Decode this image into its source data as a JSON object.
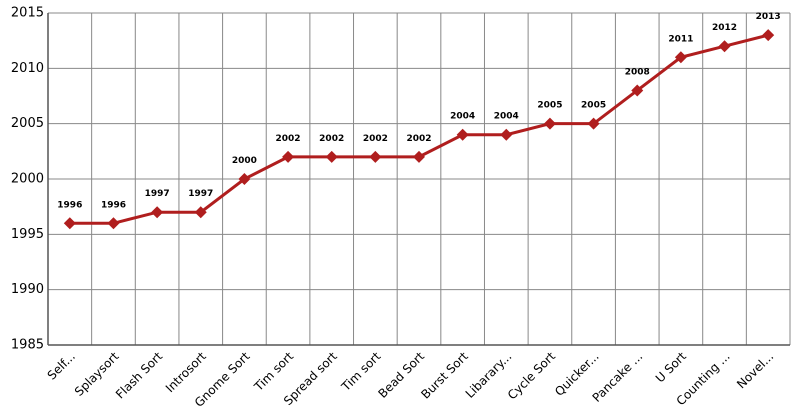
{
  "chart_data": {
    "type": "line",
    "categories": [
      "Self...",
      "Splaysort",
      "Flash Sort",
      "Introsort",
      "Gnome Sort",
      "Tim sort",
      "Spread sort",
      "Tim sort",
      "Bead Sort",
      "Burst Sort",
      "Libarary...",
      "Cycle Sort",
      "Quicker...",
      "Pancake ...",
      "U Sort",
      "Counting ...",
      "Novel..."
    ],
    "values": [
      1996,
      1996,
      1997,
      1997,
      2000,
      2002,
      2002,
      2002,
      2002,
      2004,
      2004,
      2005,
      2005,
      2008,
      2011,
      2012,
      2013
    ],
    "color": "#b01e1e",
    "ylim": [
      1985,
      2015
    ],
    "yticks": [
      1985,
      1990,
      1995,
      2000,
      2005,
      2010,
      2015
    ],
    "grid": true
  }
}
